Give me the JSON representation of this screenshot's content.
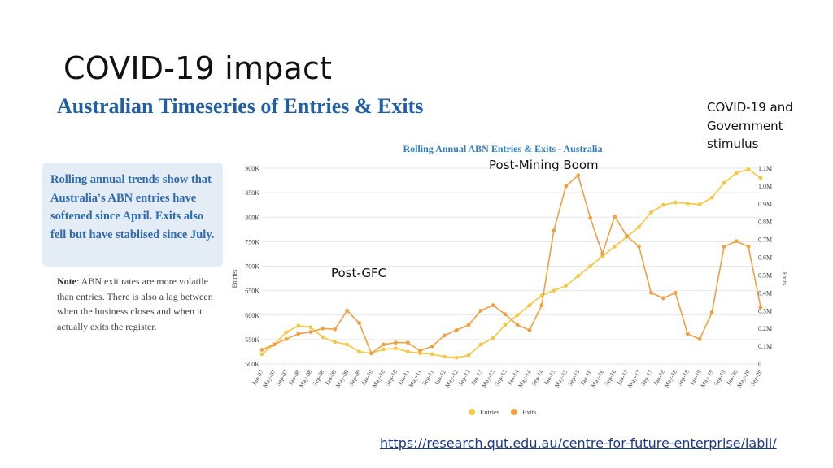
{
  "slide": {
    "title": "COVID-19 impact",
    "subtitle": "Australian Timeseries of Entries & Exits",
    "callout": "Rolling annual trends show that Australia's ABN entries have softened since April. Exits also fell but have stablised since July.",
    "note_label": "Note",
    "note_text": ": ABN exit rates are more volatile than entries. There is also a lag between when the business closes and when it actually exits the register.",
    "annotations": {
      "gfc": "Post-GFC",
      "mining": "Post-Mining Boom",
      "covid": "COVID-19 and Government stimulus"
    },
    "url": "https://research.qut.edu.au/centre-for-future-enterprise/labii/"
  },
  "chart_data": {
    "type": "line",
    "title": "Rolling Annual ABN Entries & Exits - Australia",
    "ylabel": "Entries",
    "y2label": "Exits",
    "ylim": [
      500000,
      900000
    ],
    "y2lim": [
      0,
      1100000
    ],
    "y_ticks": [
      "500K",
      "550K",
      "600K",
      "650K",
      "700K",
      "750K",
      "800K",
      "850K",
      "900K"
    ],
    "y2_ticks": [
      "0",
      "0.1M",
      "0.2M",
      "0.3M",
      "0.4M",
      "0.5M",
      "0.6M",
      "0.7M",
      "0.8M",
      "0.9M",
      "1.0M",
      "1.1M"
    ],
    "x_labels": [
      "Jan-07",
      "May-07",
      "Sep-07",
      "Jan-08",
      "May-08",
      "Sep-08",
      "Jan-09",
      "May-09",
      "Sep-09",
      "Jan-10",
      "May-10",
      "Sep-10",
      "Jan-11",
      "May-11",
      "Sep-11",
      "Jan-12",
      "May-12",
      "Sep-12",
      "Jan-13",
      "May-13",
      "Sep-13",
      "Jan-14",
      "May-14",
      "Sep-14",
      "Jan-15",
      "May-15",
      "Sep-15",
      "Jan-16",
      "May-16",
      "Sep-16",
      "Jan-17",
      "May-17",
      "Sep-17",
      "Jan-18",
      "May-18",
      "Sep-18",
      "Jan-19",
      "May-19",
      "Sep-19",
      "Jan-20",
      "May-20",
      "Sep-20"
    ],
    "legend": "bottom",
    "series": [
      {
        "name": "Entries",
        "color": "#f5c842",
        "values": [
          520000,
          540000,
          565000,
          578000,
          575000,
          555000,
          545000,
          540000,
          525000,
          522000,
          530000,
          532000,
          525000,
          522000,
          520000,
          515000,
          513000,
          518000,
          540000,
          553000,
          580000,
          600000,
          620000,
          640000,
          650000,
          660000,
          680000,
          700000,
          720000,
          740000,
          760000,
          780000,
          810000,
          825000,
          830000,
          828000,
          826000,
          840000,
          870000,
          890000,
          898000,
          880000
        ]
      },
      {
        "name": "Exits",
        "color": "#f0a040",
        "values": [
          80000,
          110000,
          140000,
          170000,
          180000,
          200000,
          195000,
          300000,
          230000,
          60000,
          110000,
          120000,
          120000,
          75000,
          100000,
          160000,
          190000,
          220000,
          300000,
          330000,
          280000,
          220000,
          190000,
          330000,
          750000,
          1000000,
          1060000,
          820000,
          620000,
          830000,
          720000,
          660000,
          400000,
          370000,
          400000,
          170000,
          140000,
          290000,
          660000,
          690000,
          660000,
          320000
        ]
      }
    ]
  }
}
